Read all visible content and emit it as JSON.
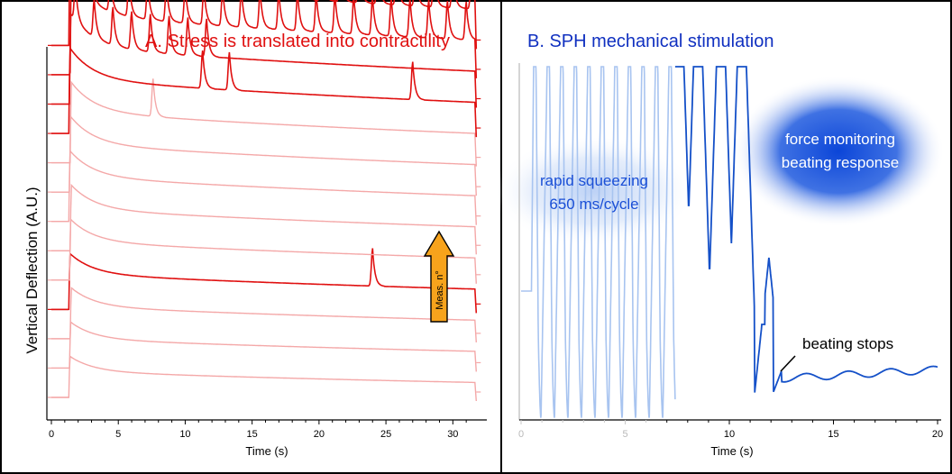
{
  "chart_data": [
    {
      "type": "line",
      "title": "A. Stress is translated into contractility",
      "xlabel": "Time (s)",
      "ylabel": "Vertical Deflection (A.U.)",
      "xlim": [
        0,
        32
      ],
      "x_ticks": [
        0,
        5,
        10,
        15,
        20,
        25,
        30
      ],
      "y_ticks_shown": false,
      "colors": {
        "dark": "#e01010",
        "light": "#f4a8a8"
      },
      "annotations": [
        "Meas. n°"
      ],
      "series": [
        {
          "shade": "light",
          "baseline": 0.0,
          "beats": []
        },
        {
          "shade": "light",
          "baseline": 0.035,
          "beats": []
        },
        {
          "shade": "light",
          "baseline": 0.07,
          "beats": []
        },
        {
          "shade": "dark",
          "baseline": 0.105,
          "beats": [
            24.0
          ]
        },
        {
          "shade": "light",
          "baseline": 0.14,
          "beats": []
        },
        {
          "shade": "light",
          "baseline": 0.175,
          "beats": []
        },
        {
          "shade": "light",
          "baseline": 0.21,
          "beats": []
        },
        {
          "shade": "light",
          "baseline": 0.245,
          "beats": []
        },
        {
          "shade": "light",
          "baseline": 0.28,
          "beats": [
            7.6
          ]
        },
        {
          "shade": "dark",
          "baseline": 0.315,
          "beats": [
            11.3,
            13.3,
            27.0
          ]
        },
        {
          "shade": "dark",
          "baseline": 0.35,
          "beats": [
            1.8,
            3.2,
            4.6,
            6.0,
            7.4,
            8.8,
            10.2,
            11.6
          ]
        },
        {
          "shade": "dark",
          "baseline": 0.385,
          "beats": [
            1.6,
            3.0,
            4.4,
            5.8,
            7.2,
            8.6,
            10.0,
            11.4,
            12.8,
            14.2,
            15.6,
            17.0,
            18.4,
            19.8,
            21.2,
            22.6,
            24.0,
            25.4,
            26.8,
            28.2,
            29.6,
            31.0
          ]
        },
        {
          "shade": "dark",
          "baseline": 0.42,
          "beats": [
            2.0,
            3.4,
            4.8,
            6.2,
            7.6,
            9.0,
            10.4,
            11.8,
            13.2,
            14.6,
            16.0,
            17.4,
            18.8,
            20.2,
            21.6,
            23.0,
            24.4,
            25.8,
            27.2,
            28.6,
            30.0,
            31.4
          ]
        }
      ]
    },
    {
      "type": "line",
      "title": "B. SPH mechanical stimulation",
      "xlabel": "Time (s)",
      "xlim": [
        0,
        20
      ],
      "x_ticks": [
        0,
        5,
        10,
        15,
        20
      ],
      "colors": {
        "squeezing": "#a8c4f0",
        "response": "#1450c8"
      },
      "annotations": [
        "rapid squeezing",
        "650 ms/cycle",
        "force monitoring",
        "beating response",
        "beating stops"
      ],
      "series": [
        {
          "name": "",
          "segment": "squeezing",
          "x_range": [
            0,
            7.4
          ],
          "cycle_ms": 650
        },
        {
          "name": "",
          "segment": "response",
          "x_range": [
            7.4,
            20.0
          ],
          "peaks_saturated": [
            7.6,
            8.5,
            9.6,
            10.6
          ],
          "peaks_damped": [
            8.2,
            9.3,
            10.3,
            11.3,
            11.9
          ],
          "stop_time": 12.1
        }
      ]
    }
  ]
}
